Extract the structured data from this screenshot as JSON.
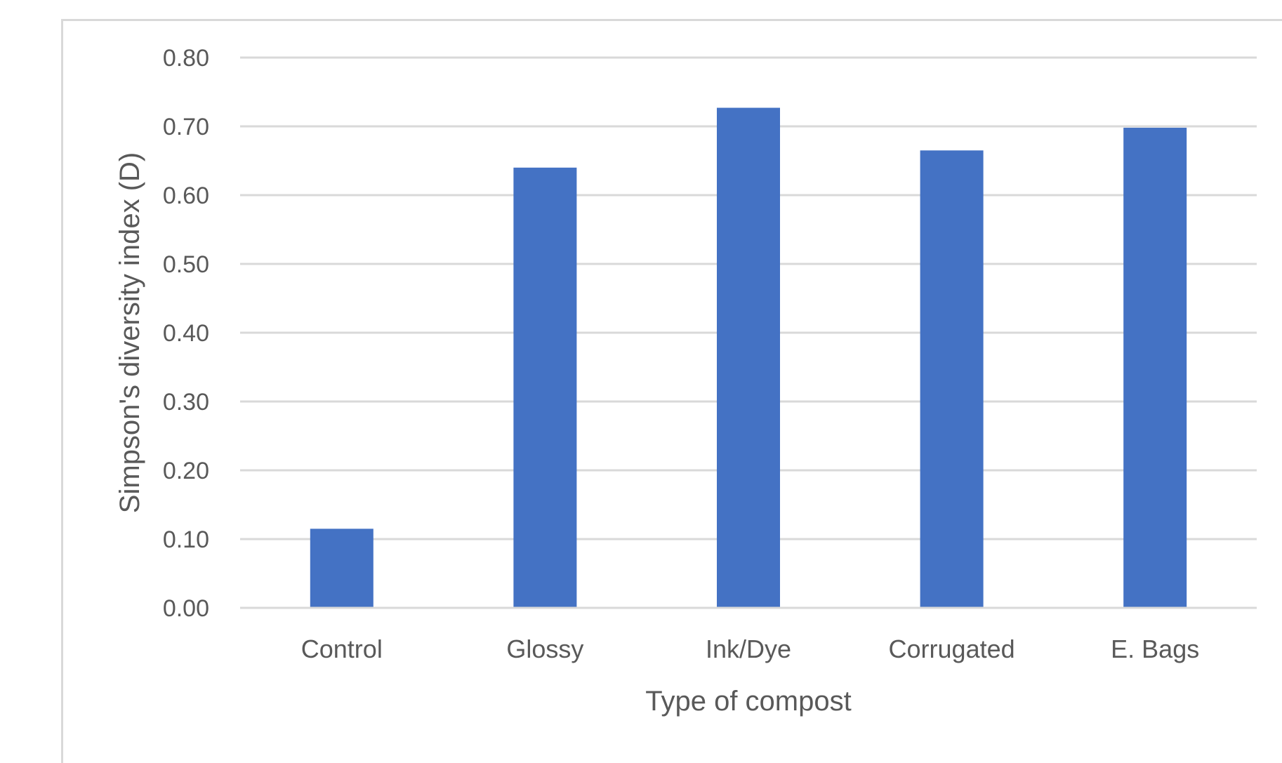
{
  "chart_data": {
    "type": "bar",
    "title": "",
    "xlabel": "Type of compost",
    "ylabel": "Simpson's diversity index (D)",
    "categories": [
      "Control",
      "Glossy",
      "Ink/Dye",
      "Corrugated",
      "E. Bags"
    ],
    "values": [
      0.115,
      0.64,
      0.727,
      0.665,
      0.698
    ],
    "ylim": [
      0,
      0.8
    ],
    "yticks": [
      "0.00",
      "0.10",
      "0.20",
      "0.30",
      "0.40",
      "0.50",
      "0.60",
      "0.70",
      "0.80"
    ],
    "grid": true,
    "legend": "none",
    "colors": {
      "bar": "#4472c4",
      "grid": "#d9d9d9",
      "text": "#595959"
    }
  }
}
